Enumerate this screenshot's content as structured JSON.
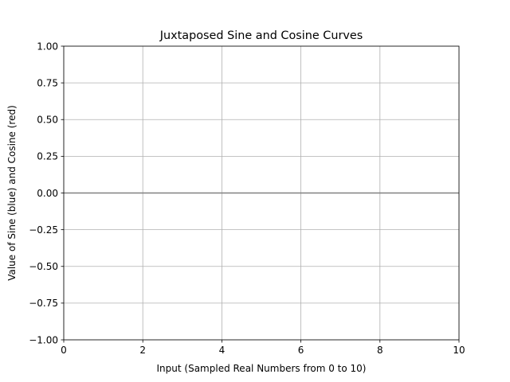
{
  "chart_data": {
    "type": "line",
    "title": "Juxtaposed Sine and Cosine Curves",
    "xlabel": "Input (Sampled Real Numbers from 0 to 10)",
    "ylabel": "Value of Sine (blue) and Cosine (red)",
    "xlim": [
      0,
      10
    ],
    "ylim": [
      -1,
      1
    ],
    "xticks": [
      0,
      2,
      4,
      6,
      8,
      10
    ],
    "xtick_labels": [
      "0",
      "2",
      "4",
      "6",
      "8",
      "10"
    ],
    "yticks": [
      -1,
      -0.75,
      -0.5,
      -0.25,
      0,
      0.25,
      0.5,
      0.75,
      1
    ],
    "ytick_labels": [
      "−1.00",
      "−0.75",
      "−0.50",
      "−0.25",
      "0.00",
      "0.25",
      "0.50",
      "0.75",
      "1.00"
    ],
    "grid": true,
    "series": [
      {
        "color": "#808080",
        "x": [
          0,
          10
        ],
        "y": [
          0,
          0
        ]
      }
    ]
  }
}
